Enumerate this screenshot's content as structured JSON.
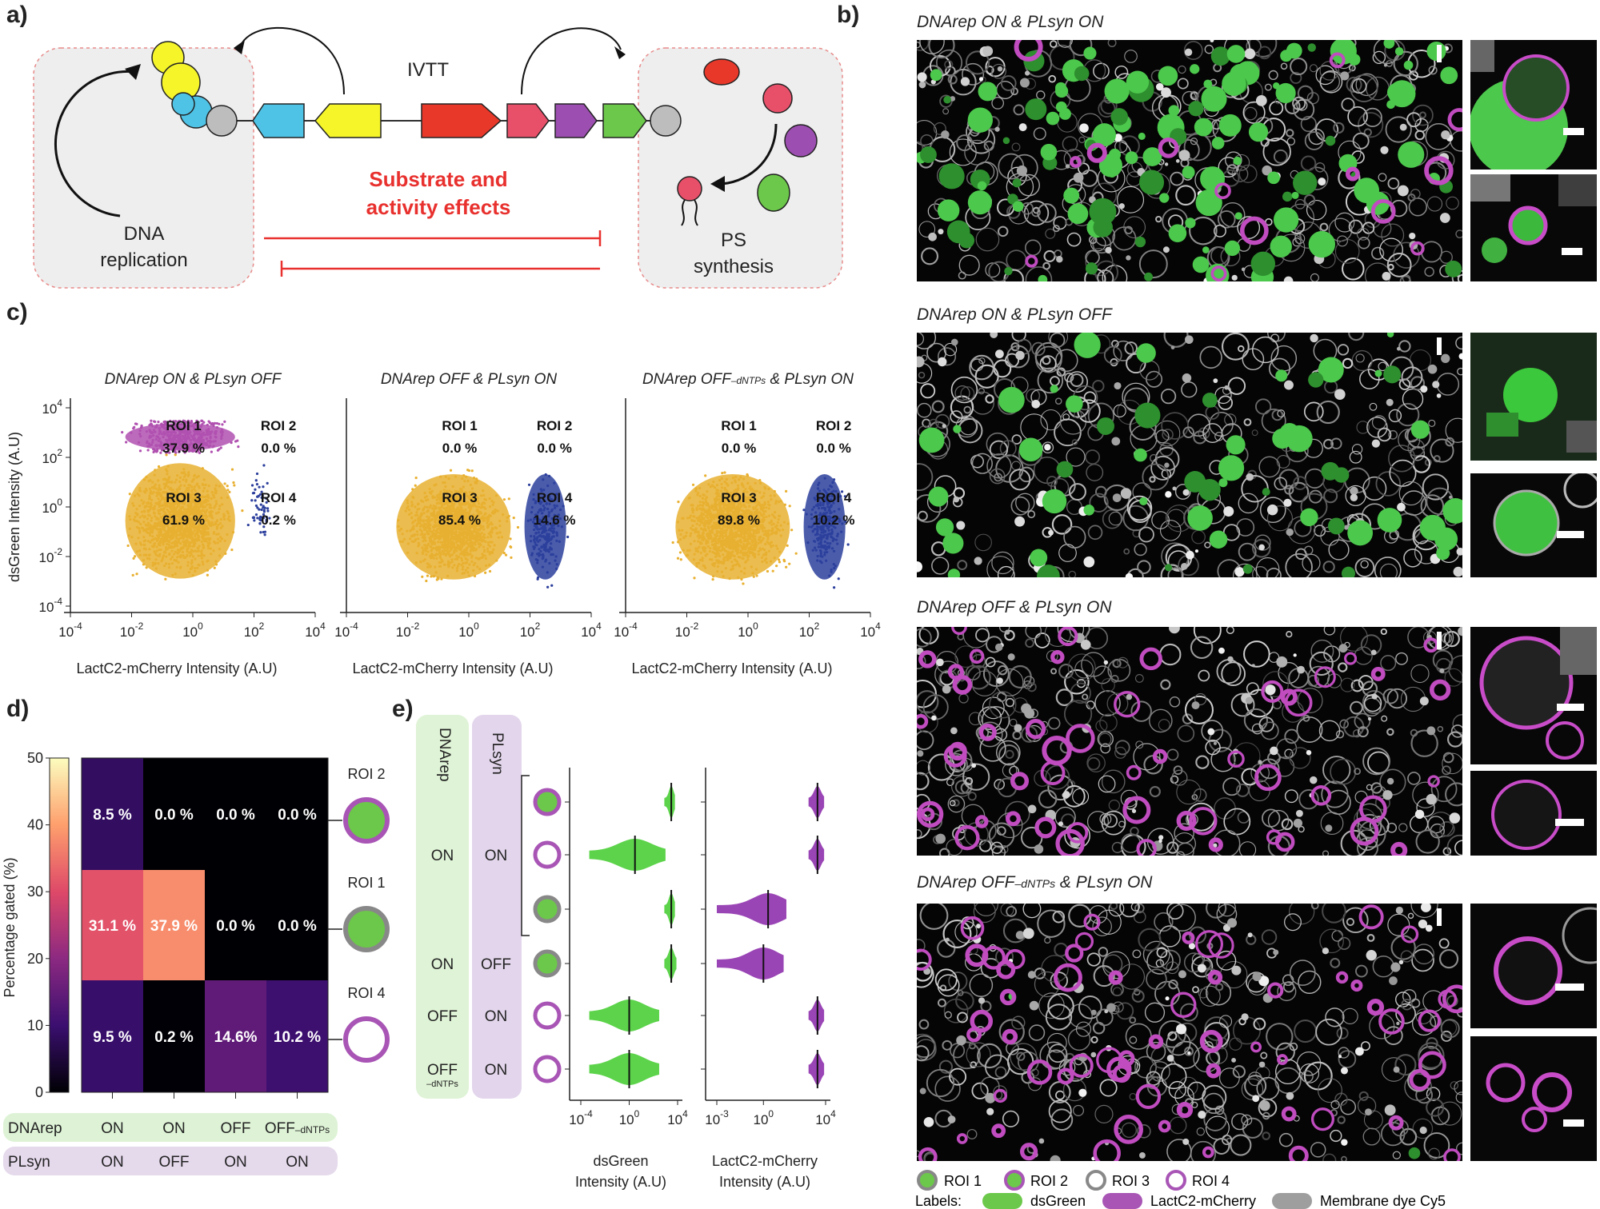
{
  "panels": {
    "a": "a)",
    "b": "b)",
    "c": "c)",
    "d": "d)",
    "e": "e)"
  },
  "panel_a": {
    "ivtt": "IVTT",
    "effect_line1": "Substrate and",
    "effect_line2": "activity effects",
    "dna_line1": "DNA",
    "dna_line2": "replication",
    "ps_line1": "PS",
    "ps_line2": "synthesis",
    "colors": {
      "cyan": "#4fc3e6",
      "yellow": "#f5f52a",
      "red": "#e8382a",
      "pink": "#e8506a",
      "purple": "#9c4fb0",
      "green": "#6cc84a",
      "gray": "#bdbdbd",
      "inhibit": "#e8312e"
    }
  },
  "panel_b": {
    "titles": [
      {
        "pre": "DNArep ON & PLsyn ON",
        "sub": "",
        "post": ""
      },
      {
        "pre": "DNArep ON & PLsyn OFF",
        "sub": "",
        "post": ""
      },
      {
        "pre": "DNArep OFF & PLsyn ON",
        "sub": "",
        "post": ""
      },
      {
        "pre": "DNArep OFF",
        "sub": "–dNTPs",
        "post": " & PLsyn ON"
      }
    ],
    "legend": {
      "roi": [
        "ROI 1",
        "ROI 2",
        "ROI 3",
        "ROI 4"
      ],
      "labels_title": "Labels:",
      "labels": [
        "dsGreen",
        "LactC2-mCherry",
        "Membrane dye Cy5"
      ]
    }
  },
  "panel_c": {
    "ylabel": "dsGreen Intensity (A.U)",
    "xlabel": "LactC2-mCherry Intensity (A.U)",
    "yticks": [
      {
        "b": "10",
        "e": "4"
      },
      {
        "b": "10",
        "e": "2"
      },
      {
        "b": "10",
        "e": "0"
      },
      {
        "b": "10",
        "e": "-2"
      },
      {
        "b": "10",
        "e": "-4"
      }
    ],
    "xticks": [
      {
        "b": "10",
        "e": "-4"
      },
      {
        "b": "10",
        "e": "-2"
      },
      {
        "b": "10",
        "e": "0"
      },
      {
        "b": "10",
        "e": "2"
      },
      {
        "b": "10",
        "e": "4"
      }
    ],
    "plots": [
      {
        "title_pre": "DNArep ON & PLsyn OFF",
        "title_sub": "",
        "title_post": "",
        "roi1": "37.9 %",
        "roi2": "0.0 %",
        "roi3": "61.9 %",
        "roi4": "0.2 %"
      },
      {
        "title_pre": "DNArep OFF & PLsyn ON",
        "title_sub": "",
        "title_post": "",
        "roi1": "0.0 %",
        "roi2": "0.0 %",
        "roi3": "85.4 %",
        "roi4": "14.6 %"
      },
      {
        "title_pre": "DNArep OFF",
        "title_sub": "–dNTPs",
        "title_post": " & PLsyn ON",
        "roi1": "0.0 %",
        "roi2": "0.0 %",
        "roi3": "89.8 %",
        "roi4": "10.2 %"
      }
    ],
    "roi_names": [
      "ROI 1",
      "ROI 2",
      "ROI 3",
      "ROI 4"
    ]
  },
  "chart_data": [
    {
      "type": "scatter",
      "title": "DNArep ON & PLsyn OFF",
      "xlabel": "LactC2-mCherry Intensity (A.U)",
      "ylabel": "dsGreen Intensity (A.U)",
      "xscale": "log",
      "yscale": "log",
      "xlim": [
        0.0001,
        10000
      ],
      "ylim": [
        0.0001,
        10000
      ],
      "gates": {
        "ROI 1": 37.9,
        "ROI 2": 0.0,
        "ROI 3": 61.9,
        "ROI 4": 0.2
      },
      "clusters": [
        {
          "roi": "ROI 3",
          "color": "#e8b030",
          "x_range": [
            0.003,
            50
          ],
          "y_range": [
            0.0005,
            150
          ]
        },
        {
          "roi": "ROI 1",
          "color": "#b050b0",
          "x_range": [
            0.003,
            50
          ],
          "y_range": [
            150,
            3000
          ]
        },
        {
          "roi": "ROI 4",
          "color": "#2c3f9c",
          "x_range": [
            50,
            600
          ],
          "y_range": [
            0.01,
            150
          ]
        }
      ]
    },
    {
      "type": "scatter",
      "title": "DNArep OFF & PLsyn ON",
      "xlabel": "LactC2-mCherry Intensity (A.U)",
      "ylabel": "dsGreen Intensity (A.U)",
      "xscale": "log",
      "yscale": "log",
      "xlim": [
        0.0001,
        10000
      ],
      "ylim": [
        0.0001,
        10000
      ],
      "gates": {
        "ROI 1": 0.0,
        "ROI 2": 0.0,
        "ROI 3": 85.4,
        "ROI 4": 14.6
      },
      "clusters": [
        {
          "roi": "ROI 3",
          "color": "#e8b030",
          "x_range": [
            0.002,
            50
          ],
          "y_range": [
            0.0005,
            50
          ]
        },
        {
          "roi": "ROI 4",
          "color": "#2c3f9c",
          "x_range": [
            50,
            2000
          ],
          "y_range": [
            0.0005,
            50
          ]
        }
      ]
    },
    {
      "type": "scatter",
      "title": "DNArep OFF–dNTPs & PLsyn ON",
      "xlabel": "LactC2-mCherry Intensity (A.U)",
      "ylabel": "dsGreen Intensity (A.U)",
      "xscale": "log",
      "yscale": "log",
      "xlim": [
        0.0001,
        10000
      ],
      "ylim": [
        0.0001,
        10000
      ],
      "gates": {
        "ROI 1": 0.0,
        "ROI 2": 0.0,
        "ROI 3": 89.8,
        "ROI 4": 10.2
      },
      "clusters": [
        {
          "roi": "ROI 3",
          "color": "#e8b030",
          "x_range": [
            0.002,
            50
          ],
          "y_range": [
            0.0005,
            50
          ]
        },
        {
          "roi": "ROI 4",
          "color": "#2c3f9c",
          "x_range": [
            50,
            2000
          ],
          "y_range": [
            0.0005,
            50
          ]
        }
      ]
    },
    {
      "type": "heatmap",
      "ylabel": "Percentage gated (%)",
      "colorbar": {
        "min": 0,
        "max": 50,
        "ticks": [
          "50",
          "40",
          "30",
          "20",
          "10",
          "0"
        ]
      },
      "rows": [
        "ROI 2",
        "ROI 1",
        "ROI 4"
      ],
      "columns": [
        {
          "dnarep": "ON",
          "plsyn": "ON"
        },
        {
          "dnarep": "ON",
          "plsyn": "OFF"
        },
        {
          "dnarep": "OFF",
          "plsyn": "ON"
        },
        {
          "dnarep": "OFF–dNTPs",
          "plsyn": "ON"
        }
      ],
      "values": [
        [
          8.5,
          0.0,
          0.0,
          0.0
        ],
        [
          31.1,
          37.9,
          0.0,
          0.0
        ],
        [
          9.5,
          0.2,
          14.6,
          10.2
        ]
      ]
    },
    {
      "type": "violin",
      "columns": [
        "dsGreen Intensity (A.U)",
        "LactC2-mCherry Intensity (A.U)"
      ],
      "rows": [
        {
          "dnarep": "ON",
          "plsyn": "ON",
          "roi": "ROI 2",
          "green_median": 3000,
          "green_range": [
            800,
            6000
          ],
          "cherry_median": 3000,
          "cherry_range": [
            800,
            8000
          ]
        },
        {
          "dnarep": "ON",
          "plsyn": "ON",
          "roi": "ROI 4",
          "green_median": 3,
          "green_range": [
            0.0005,
            1000
          ],
          "cherry_median": 3000,
          "cherry_range": [
            800,
            8000
          ]
        },
        {
          "dnarep": "ON",
          "plsyn": "ON",
          "roi": "ROI 1",
          "green_median": 3000,
          "green_range": [
            800,
            6000
          ],
          "cherry_median": 2,
          "cherry_range": [
            0.001,
            30
          ]
        },
        {
          "dnarep": "ON",
          "plsyn": "OFF",
          "roi": "ROI 1",
          "green_median": 3000,
          "green_range": [
            800,
            8000
          ],
          "cherry_median": 1,
          "cherry_range": [
            0.001,
            20
          ]
        },
        {
          "dnarep": "OFF",
          "plsyn": "ON",
          "roi": "ROI 4",
          "green_median": 1,
          "green_range": [
            0.0005,
            300
          ],
          "cherry_median": 3000,
          "cherry_range": [
            800,
            8000
          ]
        },
        {
          "dnarep": "OFF–dNTPs",
          "plsyn": "ON",
          "roi": "ROI 4",
          "green_median": 1,
          "green_range": [
            0.0005,
            300
          ],
          "cherry_median": 3000,
          "cherry_range": [
            800,
            8000
          ]
        }
      ]
    }
  ],
  "panel_d": {
    "ylabel": "Percentage gated (%)",
    "cbar_ticks": [
      "50",
      "40",
      "30",
      "20",
      "10",
      "0"
    ],
    "row_labels": [
      "ROI 2",
      "ROI 1",
      "ROI 4"
    ],
    "cells": [
      [
        "8.5 %",
        "0.0 %",
        "0.0 %",
        "0.0 %"
      ],
      [
        "31.1 %",
        "37.9 %",
        "0.0 %",
        "0.0 %"
      ],
      [
        "9.5 %",
        "0.2 %",
        "14.6%",
        "10.2 %"
      ]
    ],
    "row_dnarep": "DNArep",
    "row_plsyn": "PLsyn",
    "dnarep_vals": [
      {
        "pre": "ON",
        "sub": ""
      },
      {
        "pre": "ON",
        "sub": ""
      },
      {
        "pre": "OFF",
        "sub": ""
      },
      {
        "pre": "OFF",
        "sub": "–dNTPs"
      }
    ],
    "plsyn_vals": [
      "ON",
      "OFF",
      "ON",
      "ON"
    ]
  },
  "panel_e": {
    "col_dnarep": "DNArep",
    "col_plsyn": "PLsyn",
    "dn": [
      {
        "main": "ON",
        "sub": ""
      },
      {
        "main": "ON",
        "sub": ""
      },
      {
        "main": "OFF",
        "sub": ""
      },
      {
        "main": "OFF",
        "sub": "–dNTPs"
      }
    ],
    "pl": [
      "ON",
      "OFF",
      "ON",
      "ON"
    ],
    "green_ticks": [
      {
        "b": "10",
        "e": "-4"
      },
      {
        "b": "10",
        "e": "0"
      },
      {
        "b": "10",
        "e": "4"
      }
    ],
    "cherry_ticks": [
      {
        "b": "10",
        "e": "-3"
      },
      {
        "b": "10",
        "e": "0"
      },
      {
        "b": "10",
        "e": "4"
      }
    ],
    "green_label1": "dsGreen",
    "green_label2": "Intensity (A.U)",
    "cherry_label1": "LactC2-mCherry",
    "cherry_label2": "Intensity (A.U)"
  }
}
